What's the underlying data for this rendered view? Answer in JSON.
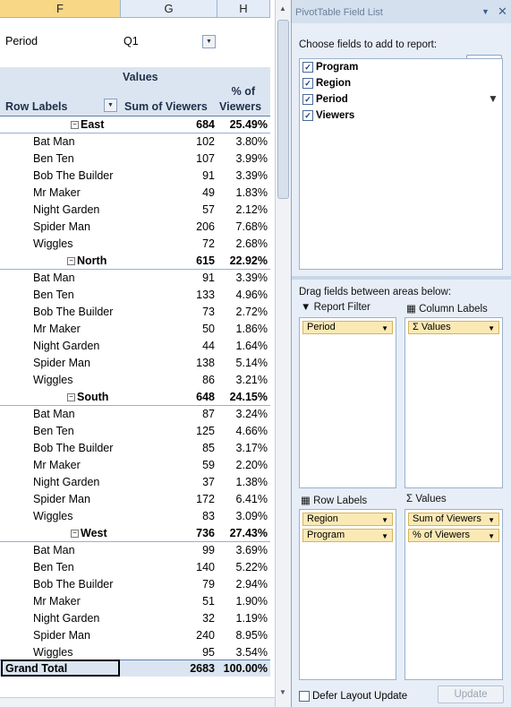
{
  "sheet": {
    "columns": [
      "F",
      "G",
      "H"
    ],
    "selected_column": "F",
    "filter": {
      "label": "Period",
      "value": "Q1"
    },
    "header": {
      "values_label": "Values",
      "row_labels": "Row Labels",
      "sum_viewers": "Sum of Viewers",
      "pct_line1": "% of",
      "pct_line2": "Viewers"
    },
    "regions": [
      {
        "name": "East",
        "sum": "684",
        "pct": "25.49%",
        "rows": [
          {
            "label": "Bat Man",
            "sum": "102",
            "pct": "3.80%"
          },
          {
            "label": "Ben Ten",
            "sum": "107",
            "pct": "3.99%"
          },
          {
            "label": "Bob The Builder",
            "sum": "91",
            "pct": "3.39%"
          },
          {
            "label": "Mr Maker",
            "sum": "49",
            "pct": "1.83%"
          },
          {
            "label": "Night Garden",
            "sum": "57",
            "pct": "2.12%"
          },
          {
            "label": "Spider Man",
            "sum": "206",
            "pct": "7.68%"
          },
          {
            "label": "Wiggles",
            "sum": "72",
            "pct": "2.68%"
          }
        ]
      },
      {
        "name": "North",
        "sum": "615",
        "pct": "22.92%",
        "rows": [
          {
            "label": "Bat Man",
            "sum": "91",
            "pct": "3.39%"
          },
          {
            "label": "Ben Ten",
            "sum": "133",
            "pct": "4.96%"
          },
          {
            "label": "Bob The Builder",
            "sum": "73",
            "pct": "2.72%"
          },
          {
            "label": "Mr Maker",
            "sum": "50",
            "pct": "1.86%"
          },
          {
            "label": "Night Garden",
            "sum": "44",
            "pct": "1.64%"
          },
          {
            "label": "Spider Man",
            "sum": "138",
            "pct": "5.14%"
          },
          {
            "label": "Wiggles",
            "sum": "86",
            "pct": "3.21%"
          }
        ]
      },
      {
        "name": "South",
        "sum": "648",
        "pct": "24.15%",
        "rows": [
          {
            "label": "Bat Man",
            "sum": "87",
            "pct": "3.24%"
          },
          {
            "label": "Ben Ten",
            "sum": "125",
            "pct": "4.66%"
          },
          {
            "label": "Bob The Builder",
            "sum": "85",
            "pct": "3.17%"
          },
          {
            "label": "Mr Maker",
            "sum": "59",
            "pct": "2.20%"
          },
          {
            "label": "Night Garden",
            "sum": "37",
            "pct": "1.38%"
          },
          {
            "label": "Spider Man",
            "sum": "172",
            "pct": "6.41%"
          },
          {
            "label": "Wiggles",
            "sum": "83",
            "pct": "3.09%"
          }
        ]
      },
      {
        "name": "West",
        "sum": "736",
        "pct": "27.43%",
        "rows": [
          {
            "label": "Bat Man",
            "sum": "99",
            "pct": "3.69%"
          },
          {
            "label": "Ben Ten",
            "sum": "140",
            "pct": "5.22%"
          },
          {
            "label": "Bob The Builder",
            "sum": "79",
            "pct": "2.94%"
          },
          {
            "label": "Mr Maker",
            "sum": "51",
            "pct": "1.90%"
          },
          {
            "label": "Night Garden",
            "sum": "32",
            "pct": "1.19%"
          },
          {
            "label": "Spider Man",
            "sum": "240",
            "pct": "8.95%"
          },
          {
            "label": "Wiggles",
            "sum": "95",
            "pct": "3.54%"
          }
        ]
      }
    ],
    "grand_total": {
      "label": "Grand Total",
      "sum": "2683",
      "pct": "100.00%"
    }
  },
  "panel": {
    "title": "PivotTable Field List",
    "choose_label": "Choose fields to add to report:",
    "fields": [
      {
        "name": "Program",
        "checked": true
      },
      {
        "name": "Region",
        "checked": true
      },
      {
        "name": "Period",
        "checked": true
      },
      {
        "name": "Viewers",
        "checked": true
      }
    ],
    "drag_label": "Drag fields between areas below:",
    "report_filter_label": "Report Filter",
    "column_labels_label": "Column Labels",
    "row_labels_label": "Row Labels",
    "values_label": "Values",
    "report_filter_items": [
      "Period"
    ],
    "column_items": [
      "Values"
    ],
    "row_items": [
      "Region",
      "Program"
    ],
    "value_items": [
      "Sum of Viewers",
      "% of Viewers"
    ],
    "defer_label": "Defer Layout Update",
    "update_label": "Update"
  },
  "colors": {
    "accent": "#f8d787",
    "header_band": "#dbe5f1",
    "panel_bg": "#e7eef7",
    "pill": "#fbe9b3"
  }
}
